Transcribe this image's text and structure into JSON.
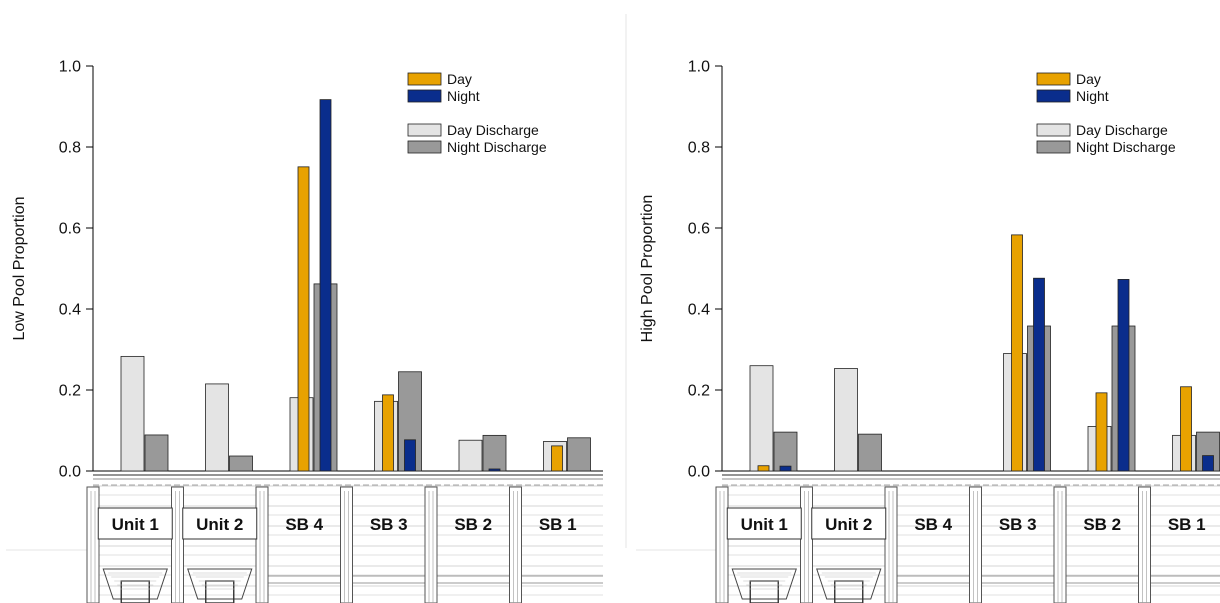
{
  "chart_data": [
    {
      "type": "bar",
      "ylabel": "Low Pool Proportion",
      "ylim": [
        0,
        1.0
      ],
      "yticks": [
        "0.0",
        "0.2",
        "0.4",
        "0.6",
        "0.8",
        "1.0"
      ],
      "categories": [
        "Unit 1",
        "Unit 2",
        "SB 4",
        "SB 3",
        "SB 2",
        "SB 1"
      ],
      "legend": {
        "placement": "top-right"
      },
      "series": [
        {
          "name": "Day Discharge",
          "color": "#e4e4e4",
          "values": [
            0.283,
            0.215,
            0.181,
            0.172,
            0.076,
            0.073
          ]
        },
        {
          "name": "Day",
          "color": "#e8a200",
          "values": [
            0,
            0,
            0.751,
            0.188,
            0,
            0.062
          ]
        },
        {
          "name": "Night Discharge",
          "color": "#999999",
          "values": [
            0.089,
            0.037,
            0.462,
            0.245,
            0.088,
            0.082
          ]
        },
        {
          "name": "Night",
          "color": "#0a2d8c",
          "values": [
            0,
            0,
            0.917,
            0.077,
            0.005,
            0
          ]
        }
      ]
    },
    {
      "type": "bar",
      "ylabel": "High Pool Proportion",
      "ylim": [
        0,
        1.0
      ],
      "yticks": [
        "0.0",
        "0.2",
        "0.4",
        "0.6",
        "0.8",
        "1.0"
      ],
      "categories": [
        "Unit 1",
        "Unit 2",
        "SB 4",
        "SB 3",
        "SB 2",
        "SB 1"
      ],
      "legend": {
        "placement": "top-right"
      },
      "series": [
        {
          "name": "Day Discharge",
          "color": "#e4e4e4",
          "values": [
            0.26,
            0.253,
            0,
            0.29,
            0.11,
            0.088
          ]
        },
        {
          "name": "Day",
          "color": "#e8a200",
          "values": [
            0.013,
            0,
            0,
            0.583,
            0.193,
            0.208
          ]
        },
        {
          "name": "Night Discharge",
          "color": "#999999",
          "values": [
            0.096,
            0.091,
            0,
            0.358,
            0.358,
            0.096
          ]
        },
        {
          "name": "Night",
          "color": "#0a2d8c",
          "values": [
            0.012,
            0,
            0,
            0.476,
            0.473,
            0.038
          ]
        }
      ]
    }
  ]
}
